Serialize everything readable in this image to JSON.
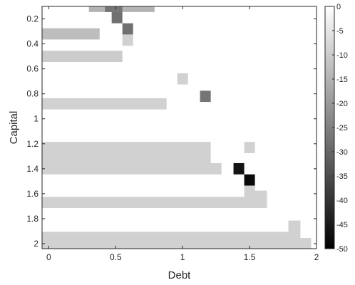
{
  "chart_data": {
    "type": "heatmap",
    "title": "",
    "xlabel": "Debt",
    "ylabel": "Capital",
    "xlim": [
      -0.05,
      2.0
    ],
    "ylim": [
      0.1,
      2.04
    ],
    "y_reversed": true,
    "grid": false,
    "x_ticks": [
      0,
      0.5,
      1,
      1.5,
      2
    ],
    "x_tick_labels": [
      "0",
      "0.5",
      "1",
      "1.5",
      "2"
    ],
    "y_ticks": [
      0.2,
      0.4,
      0.6,
      0.8,
      1.0,
      1.2,
      1.4,
      1.6,
      1.8,
      2.0
    ],
    "y_tick_labels": [
      "0.2",
      "0.4",
      "0.6",
      "0.8",
      "1",
      "1.2",
      "1.4",
      "1.6",
      "1.8",
      "2"
    ],
    "cell_height": 0.09,
    "colorbar": {
      "min": -50,
      "max": 0,
      "ticks": [
        0,
        -5,
        -10,
        -15,
        -20,
        -25,
        -30,
        -35,
        -40,
        -45,
        -50
      ],
      "tick_labels": [
        "0",
        "-5",
        "-10",
        "-15",
        "-20",
        "-25",
        "-30",
        "-35",
        "-40",
        "-45",
        "-50"
      ]
    },
    "cells": [
      {
        "y": 0.1,
        "x0": 0.3,
        "x1": 0.79,
        "value": -15
      },
      {
        "y": 0.1,
        "x0": 0.42,
        "x1": 0.55,
        "value": -27
      },
      {
        "y": 0.19,
        "x0": 0.47,
        "x1": 0.55,
        "value": -28
      },
      {
        "y": 0.28,
        "x0": 0.55,
        "x1": 0.63,
        "value": -28
      },
      {
        "y": 0.32,
        "x0": -0.05,
        "x1": 0.38,
        "value": -13
      },
      {
        "y": 0.37,
        "x0": 0.55,
        "x1": 0.63,
        "value": -9
      },
      {
        "y": 0.5,
        "x0": -0.05,
        "x1": 0.55,
        "value": -10
      },
      {
        "y": 0.68,
        "x0": 0.96,
        "x1": 1.04,
        "value": -9
      },
      {
        "y": 0.82,
        "x0": 1.13,
        "x1": 1.21,
        "value": -27
      },
      {
        "y": 0.88,
        "x0": -0.05,
        "x1": 0.88,
        "value": -9
      },
      {
        "y": 1.23,
        "x0": -0.05,
        "x1": 1.21,
        "value": -9
      },
      {
        "y": 1.23,
        "x0": 1.46,
        "x1": 1.54,
        "value": -9
      },
      {
        "y": 1.32,
        "x0": -0.05,
        "x1": 1.21,
        "value": -9
      },
      {
        "y": 1.4,
        "x0": -0.05,
        "x1": 1.29,
        "value": -9
      },
      {
        "y": 1.4,
        "x0": 1.38,
        "x1": 1.46,
        "value": -46
      },
      {
        "y": 1.49,
        "x0": 1.46,
        "x1": 1.54,
        "value": -48
      },
      {
        "y": 1.58,
        "x0": 1.46,
        "x1": 1.54,
        "value": -9
      },
      {
        "y": 1.67,
        "x0": -0.05,
        "x1": 1.63,
        "value": -9
      },
      {
        "y": 1.62,
        "x0": 1.54,
        "x1": 1.63,
        "value": -9
      },
      {
        "y": 1.86,
        "x0": 1.79,
        "x1": 1.88,
        "value": -9
      },
      {
        "y": 1.95,
        "x0": -0.05,
        "x1": 1.88,
        "value": -9
      },
      {
        "y": 2.0,
        "x0": -0.05,
        "x1": 1.96,
        "value": -9
      }
    ]
  }
}
